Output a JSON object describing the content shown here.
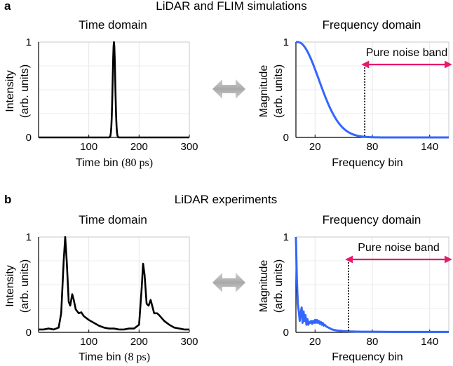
{
  "panels": [
    {
      "letter": "a",
      "title": "LiDAR and FLIM simulations",
      "arrow_icon": "double-headed-arrow-icon",
      "time": {
        "subtitle": "Time domain",
        "ylabel_line1": "Intensity",
        "ylabel_line2": "(arb. units)",
        "xlabel_main": "Time bin",
        "xlabel_paren": "(80 ps)",
        "xticks": [
          "100",
          "200",
          "300"
        ],
        "yticks": [
          "0",
          "1"
        ]
      },
      "freq": {
        "subtitle": "Frequency domain",
        "ylabel_line1": "Magnitude",
        "ylabel_line2": "(arb. units)",
        "xlabel": "Frequency bin",
        "xticks": [
          "20",
          "80",
          "140"
        ],
        "yticks": [
          "0",
          "1"
        ],
        "noise_label": "Pure noise band"
      }
    },
    {
      "letter": "b",
      "title": "LiDAR experiments",
      "arrow_icon": "double-headed-arrow-icon",
      "time": {
        "subtitle": "Time domain",
        "ylabel_line1": "Intensity",
        "ylabel_line2": "(arb. units)",
        "xlabel_main": "Time bin",
        "xlabel_paren": "(8 ps)",
        "xticks": [
          "100",
          "200",
          "300"
        ],
        "yticks": [
          "0",
          "1"
        ]
      },
      "freq": {
        "subtitle": "Frequency domain",
        "ylabel_line1": "Magnitude",
        "ylabel_line2": "(arb. units)",
        "xlabel": "Frequency bin",
        "xticks": [
          "20",
          "80",
          "140"
        ],
        "yticks": [
          "0",
          "1"
        ],
        "noise_label": "Pure noise band"
      }
    }
  ],
  "chart_data": [
    {
      "panel": "a-time",
      "type": "line",
      "title": "Time domain",
      "xlabel": "Time bin (80 ps)",
      "ylabel": "Intensity (arb. units)",
      "xlim": [
        0,
        300
      ],
      "ylim": [
        0,
        1
      ],
      "xticks": [
        100,
        200,
        300
      ],
      "yticks": [
        0,
        1
      ],
      "grid": true,
      "color": "#000000",
      "series": [
        {
          "name": "gaussian pulse",
          "kind": "gauss",
          "center": 150,
          "sigma": 2.5,
          "amp": 1.0,
          "base": 0.0
        }
      ]
    },
    {
      "panel": "a-freq",
      "type": "line",
      "title": "Frequency domain",
      "xlabel": "Frequency bin",
      "ylabel": "Magnitude (arb. units)",
      "xlim": [
        0,
        160
      ],
      "ylim": [
        0,
        1
      ],
      "xticks": [
        20,
        80,
        140
      ],
      "yticks": [
        0,
        1
      ],
      "grid": true,
      "color": "#3366ff",
      "noise_band": {
        "start": 72,
        "end": 160,
        "color": "#e8186d",
        "label": "Pure noise band"
      },
      "series": [
        {
          "name": "spectrum",
          "kind": "halfgauss",
          "center": 2,
          "sigma": 22,
          "amp": 1.0,
          "base": 0.0
        }
      ]
    },
    {
      "panel": "b-time",
      "type": "line",
      "title": "Time domain",
      "xlabel": "Time bin (8 ps)",
      "ylabel": "Intensity (arb. units)",
      "xlim": [
        0,
        300
      ],
      "ylim": [
        0,
        1
      ],
      "xticks": [
        100,
        200,
        300
      ],
      "yticks": [
        0,
        1
      ],
      "grid": true,
      "color": "#000000",
      "points": [
        [
          0,
          0.03
        ],
        [
          10,
          0.03
        ],
        [
          20,
          0.04
        ],
        [
          30,
          0.03
        ],
        [
          40,
          0.05
        ],
        [
          45,
          0.2
        ],
        [
          50,
          0.75
        ],
        [
          53,
          1.0
        ],
        [
          56,
          0.75
        ],
        [
          60,
          0.32
        ],
        [
          63,
          0.28
        ],
        [
          67,
          0.4
        ],
        [
          70,
          0.34
        ],
        [
          74,
          0.24
        ],
        [
          80,
          0.2
        ],
        [
          85,
          0.21
        ],
        [
          90,
          0.17
        ],
        [
          100,
          0.13
        ],
        [
          110,
          0.1
        ],
        [
          120,
          0.07
        ],
        [
          130,
          0.05
        ],
        [
          140,
          0.04
        ],
        [
          150,
          0.04
        ],
        [
          160,
          0.03
        ],
        [
          170,
          0.03
        ],
        [
          180,
          0.04
        ],
        [
          190,
          0.04
        ],
        [
          200,
          0.08
        ],
        [
          205,
          0.45
        ],
        [
          208,
          0.72
        ],
        [
          211,
          0.6
        ],
        [
          215,
          0.3
        ],
        [
          219,
          0.28
        ],
        [
          223,
          0.34
        ],
        [
          226,
          0.28
        ],
        [
          230,
          0.2
        ],
        [
          236,
          0.2
        ],
        [
          240,
          0.18
        ],
        [
          250,
          0.12
        ],
        [
          260,
          0.08
        ],
        [
          270,
          0.05
        ],
        [
          280,
          0.04
        ],
        [
          290,
          0.03
        ],
        [
          300,
          0.03
        ]
      ]
    },
    {
      "panel": "b-freq",
      "type": "line",
      "title": "Frequency domain",
      "xlabel": "Frequency bin",
      "ylabel": "Magnitude (arb. units)",
      "xlim": [
        0,
        160
      ],
      "ylim": [
        0,
        1
      ],
      "xticks": [
        20,
        80,
        140
      ],
      "yticks": [
        0,
        1
      ],
      "grid": true,
      "color": "#3366ff",
      "noise_band": {
        "start": 55,
        "end": 160,
        "color": "#e8186d",
        "label": "Pure noise band"
      },
      "points": [
        [
          0,
          1.0
        ],
        [
          1,
          0.55
        ],
        [
          2,
          0.3
        ],
        [
          3,
          0.22
        ],
        [
          4,
          0.12
        ],
        [
          5,
          0.2
        ],
        [
          6,
          0.26
        ],
        [
          7,
          0.1
        ],
        [
          8,
          0.22
        ],
        [
          9,
          0.12
        ],
        [
          10,
          0.18
        ],
        [
          11,
          0.08
        ],
        [
          12,
          0.14
        ],
        [
          13,
          0.08
        ],
        [
          14,
          0.11
        ],
        [
          15,
          0.1
        ],
        [
          16,
          0.12
        ],
        [
          17,
          0.09
        ],
        [
          18,
          0.12
        ],
        [
          19,
          0.1
        ],
        [
          20,
          0.13
        ],
        [
          21,
          0.1
        ],
        [
          22,
          0.13
        ],
        [
          23,
          0.1
        ],
        [
          24,
          0.12
        ],
        [
          25,
          0.09
        ],
        [
          26,
          0.11
        ],
        [
          27,
          0.08
        ],
        [
          28,
          0.1
        ],
        [
          29,
          0.07
        ],
        [
          30,
          0.08
        ],
        [
          32,
          0.06
        ],
        [
          34,
          0.05
        ],
        [
          36,
          0.04
        ],
        [
          38,
          0.03
        ],
        [
          40,
          0.025
        ],
        [
          44,
          0.018
        ],
        [
          50,
          0.012
        ],
        [
          55,
          0.01
        ],
        [
          60,
          0.008
        ],
        [
          70,
          0.006
        ],
        [
          80,
          0.006
        ],
        [
          100,
          0.005
        ],
        [
          120,
          0.005
        ],
        [
          140,
          0.005
        ],
        [
          160,
          0.005
        ]
      ]
    }
  ]
}
